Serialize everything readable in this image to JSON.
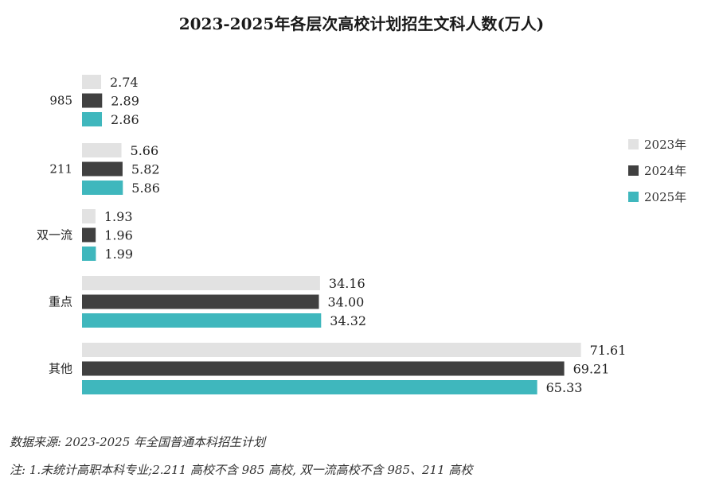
{
  "chart_data": {
    "type": "bar",
    "orientation": "horizontal",
    "title": "2023-2025年各层次高校计划招生文科人数(万人)",
    "categories": [
      "985",
      "211",
      "双一流",
      "重点",
      "其他"
    ],
    "series": [
      {
        "name": "2023年",
        "color": "#e2e2e2",
        "values": [
          2.74,
          5.66,
          1.93,
          34.16,
          71.61
        ]
      },
      {
        "name": "2024年",
        "color": "#404040",
        "values": [
          2.89,
          5.82,
          1.96,
          34.0,
          69.21
        ]
      },
      {
        "name": "2025年",
        "color": "#3fb7bd",
        "values": [
          2.86,
          5.86,
          1.99,
          34.32,
          65.33
        ]
      }
    ],
    "xlim": [
      0,
      75
    ],
    "grid": false,
    "legend_position": "right",
    "value_labels": true
  },
  "notes": {
    "source": "数据来源: 2023-2025 年全国普通本科招生计划",
    "footnote": "注: 1.未统计高职本科专业;2.211 高校不含 985 高校, 双一流高校不含 985、211 高校"
  }
}
